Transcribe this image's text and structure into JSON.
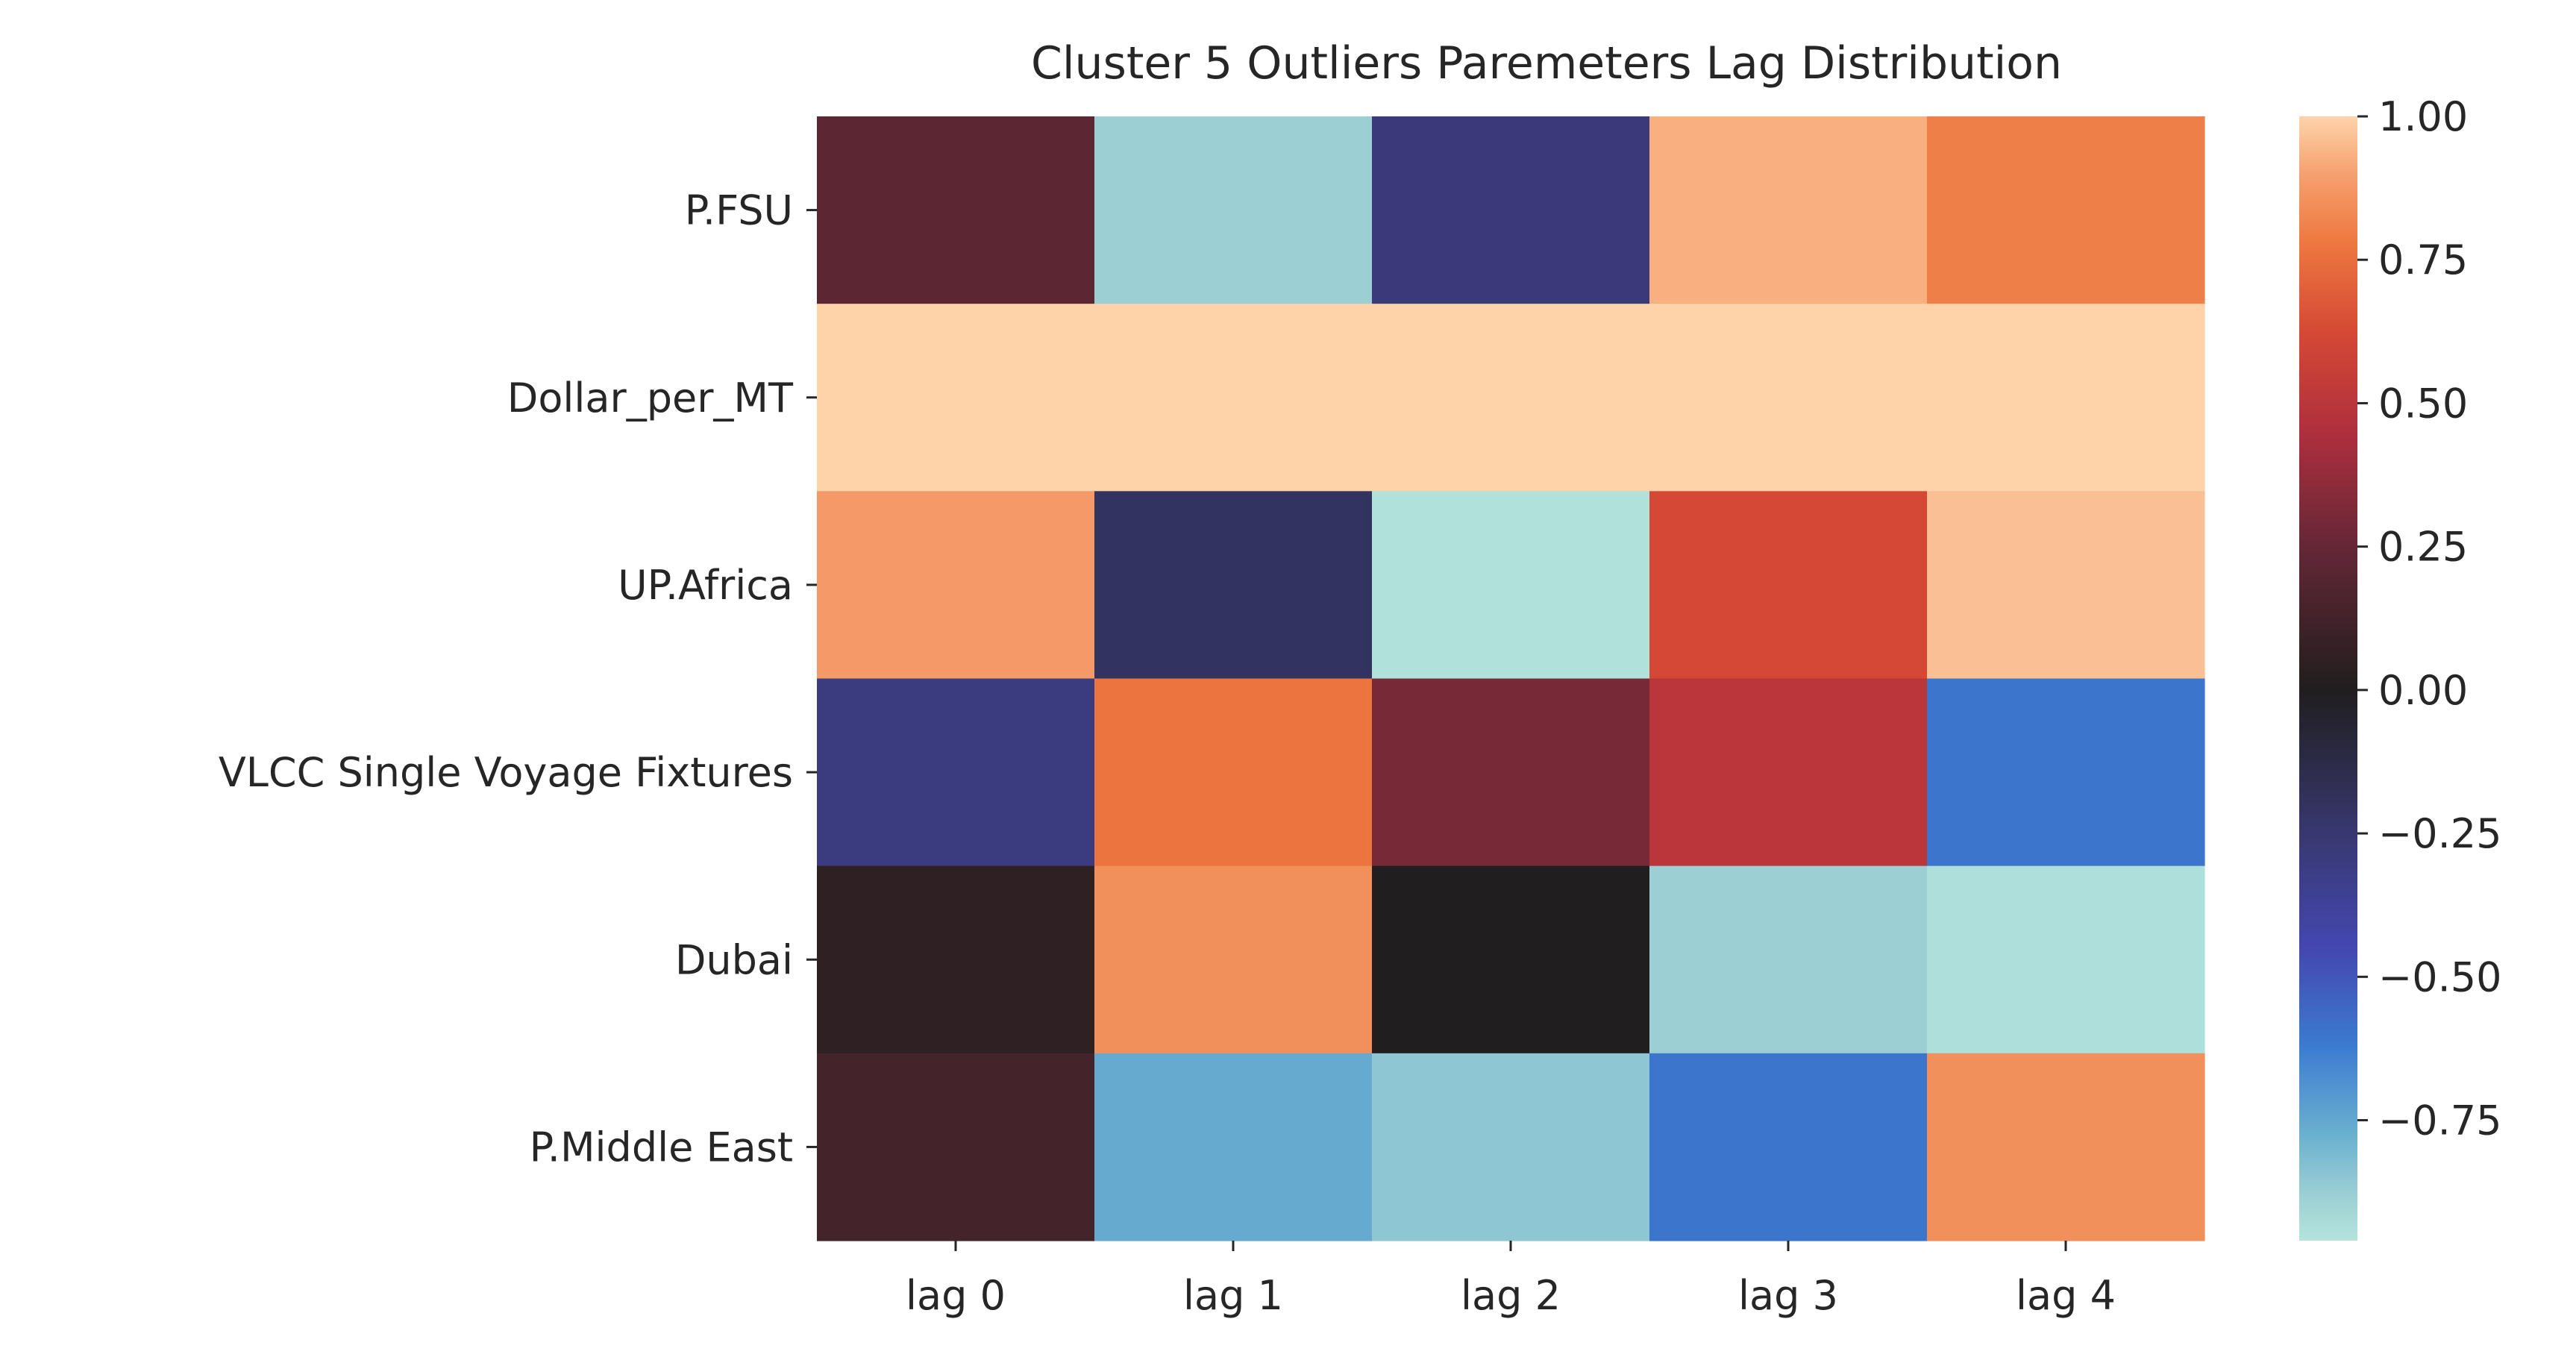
{
  "chart_data": {
    "type": "heatmap",
    "title": "Cluster 5 Outliers Paremeters Lag Distribution",
    "xlabel": "",
    "ylabel": "",
    "x_categories": [
      "lag 0",
      "lag 1",
      "lag 2",
      "lag 3",
      "lag 4"
    ],
    "y_categories": [
      "P.FSU",
      "Dollar_per_MT",
      "UP.Africa",
      "VLCC Single Voyage Fixtures",
      "Dubai",
      "P.Middle East"
    ],
    "values": [
      [
        0.22,
        -0.88,
        -0.28,
        0.93,
        0.8
      ],
      [
        1.0,
        1.0,
        1.0,
        1.0,
        1.0
      ],
      [
        0.88,
        -0.2,
        -0.98,
        0.62,
        0.96
      ],
      [
        -0.3,
        0.77,
        0.3,
        0.5,
        -0.6
      ],
      [
        0.05,
        0.85,
        0.0,
        -0.88,
        -0.97
      ],
      [
        0.13,
        -0.76,
        -0.85,
        -0.6,
        0.85
      ]
    ],
    "colorbar": {
      "min": -0.96,
      "max": 1.0,
      "center": 0.0,
      "colormap": "icefire",
      "ticks": [
        1.0,
        0.75,
        0.5,
        0.25,
        0.0,
        -0.25,
        -0.5,
        -0.75
      ],
      "tick_labels": [
        "1.00",
        "0.75",
        "0.50",
        "0.25",
        "0.00",
        "−0.25",
        "−0.50",
        "−0.75"
      ]
    },
    "colormap_stops": [
      {
        "v": -1.0,
        "color": "#b5e4dc"
      },
      {
        "v": -0.88,
        "color": "#9ccfd4"
      },
      {
        "v": -0.78,
        "color": "#6cb2cf"
      },
      {
        "v": -0.62,
        "color": "#3b7bd0"
      },
      {
        "v": -0.45,
        "color": "#4447b0"
      },
      {
        "v": -0.25,
        "color": "#383870"
      },
      {
        "v": 0.0,
        "color": "#201e1e"
      },
      {
        "v": 0.25,
        "color": "#652736"
      },
      {
        "v": 0.45,
        "color": "#af2f3e"
      },
      {
        "v": 0.62,
        "color": "#d44835"
      },
      {
        "v": 0.78,
        "color": "#ee7840"
      },
      {
        "v": 0.9,
        "color": "#f5a170"
      },
      {
        "v": 1.0,
        "color": "#fed3aa"
      }
    ]
  }
}
